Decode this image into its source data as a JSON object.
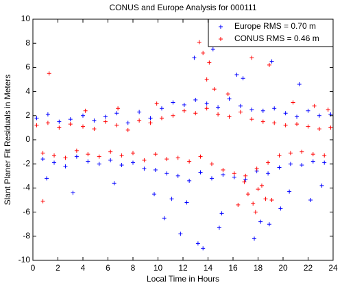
{
  "chart_data": {
    "type": "scatter",
    "title": "CONUS and Europe Analysis for 000111",
    "x_label": "Local Time in Hours",
    "y_label": "Slant Planer Fit Residuals in Meters",
    "xlim": [
      0,
      24
    ],
    "xticks": [
      0,
      2,
      4,
      6,
      8,
      10,
      12,
      14,
      16,
      18,
      20,
      22,
      24
    ],
    "ylim": [
      -10,
      10
    ],
    "yticks": [
      -10,
      -8,
      -6,
      -4,
      -2,
      0,
      2,
      4,
      6,
      8,
      10
    ],
    "legend": "top-right",
    "series": [
      {
        "name": "Europe RMS = 0.70 m",
        "color": "#0000ff",
        "x": [
          0.3,
          0.8,
          1.2,
          1.7,
          2.1,
          2.6,
          3.0,
          3.5,
          4.0,
          4.4,
          4.9,
          5.3,
          5.8,
          6.2,
          6.7,
          7.1,
          7.6,
          8.0,
          8.5,
          8.9,
          9.4,
          9.8,
          10.3,
          10.7,
          11.2,
          11.6,
          12.1,
          12.5,
          13.0,
          13.4,
          13.9,
          14.3,
          14.8,
          15.2,
          15.7,
          16.1,
          16.6,
          17.0,
          17.5,
          17.9,
          18.4,
          18.8,
          19.3,
          19.7,
          20.2,
          20.6,
          21.1,
          21.5,
          22.0,
          22.4,
          22.9,
          23.3,
          23.8,
          10.5,
          11.8,
          12.3,
          12.9,
          13.6,
          14.4,
          15.1,
          16.3,
          17.7,
          18.2,
          19.1,
          19.8,
          20.5,
          21.3,
          22.2,
          23.1,
          11.1,
          13.2,
          14.9,
          16.8,
          18.9,
          9.7,
          6.5,
          3.2,
          1.1
        ],
        "values": [
          1.8,
          -1.6,
          2.1,
          -1.9,
          1.5,
          -2.2,
          1.7,
          -1.4,
          2.0,
          -1.8,
          1.6,
          -2.0,
          1.9,
          -1.7,
          2.2,
          -2.1,
          1.4,
          -1.9,
          2.3,
          -2.4,
          1.8,
          -2.5,
          2.6,
          -2.8,
          3.1,
          -3.0,
          2.9,
          -3.4,
          3.3,
          -2.7,
          3.0,
          -3.2,
          2.7,
          -2.9,
          3.4,
          -3.1,
          2.8,
          -3.3,
          2.5,
          -2.6,
          2.4,
          -2.8,
          2.6,
          -2.3,
          2.2,
          -2.0,
          1.9,
          -2.1,
          2.4,
          -1.8,
          2.0,
          -1.9,
          2.1,
          -6.5,
          -7.8,
          -5.2,
          6.8,
          -9.0,
          7.5,
          -6.1,
          5.4,
          -8.2,
          -6.8,
          6.5,
          -5.7,
          -4.3,
          4.6,
          -5.0,
          -3.8,
          -4.9,
          -8.6,
          -7.3,
          5.1,
          -7.0,
          -4.5,
          -3.6,
          -4.4,
          -3.2
        ]
      },
      {
        "name": "CONUS RMS = 0.46 m",
        "color": "#ff0000",
        "x": [
          0.3,
          0.8,
          1.2,
          1.7,
          2.1,
          2.6,
          3.0,
          3.5,
          4.0,
          4.4,
          4.9,
          5.3,
          5.8,
          6.2,
          6.7,
          7.1,
          7.6,
          8.0,
          8.5,
          8.9,
          9.4,
          9.8,
          10.3,
          10.7,
          11.2,
          11.6,
          12.1,
          12.5,
          13.0,
          13.4,
          13.9,
          14.3,
          14.8,
          15.2,
          15.7,
          16.1,
          16.6,
          17.0,
          17.5,
          17.9,
          18.4,
          18.8,
          19.3,
          19.7,
          20.2,
          20.6,
          21.1,
          21.5,
          22.0,
          22.4,
          22.9,
          23.3,
          23.8,
          1.3,
          0.8,
          13.3,
          13.6,
          14.1,
          13.9,
          14.5,
          17.2,
          17.6,
          18.0,
          18.3,
          17.8,
          18.6,
          16.9,
          19.1,
          15.6,
          16.4,
          17.5,
          18.9,
          20.8,
          22.5,
          23.6,
          4.2,
          6.8,
          9.9
        ],
        "values": [
          1.2,
          -1.1,
          1.4,
          -1.3,
          1.0,
          -1.5,
          1.3,
          -0.9,
          1.1,
          -1.2,
          0.9,
          -1.4,
          1.5,
          -1.0,
          1.2,
          -1.3,
          0.8,
          -1.1,
          1.6,
          -1.7,
          1.4,
          -1.2,
          1.8,
          -1.6,
          2.0,
          -1.5,
          2.4,
          -1.8,
          2.2,
          -1.4,
          2.6,
          -2.0,
          2.1,
          -2.5,
          1.9,
          -2.8,
          2.3,
          -3.0,
          1.7,
          -2.4,
          1.5,
          -1.9,
          1.4,
          -1.3,
          1.2,
          -1.1,
          1.3,
          -1.0,
          1.1,
          -1.2,
          0.9,
          -1.3,
          1.0,
          5.5,
          -5.1,
          8.1,
          7.2,
          6.4,
          5.0,
          4.2,
          -4.5,
          -5.3,
          -4.1,
          -3.8,
          -6.0,
          -4.9,
          -3.5,
          -5.0,
          3.8,
          -5.4,
          6.8,
          6.2,
          3.1,
          2.8,
          2.5,
          2.4,
          2.6,
          3.0
        ]
      }
    ]
  }
}
